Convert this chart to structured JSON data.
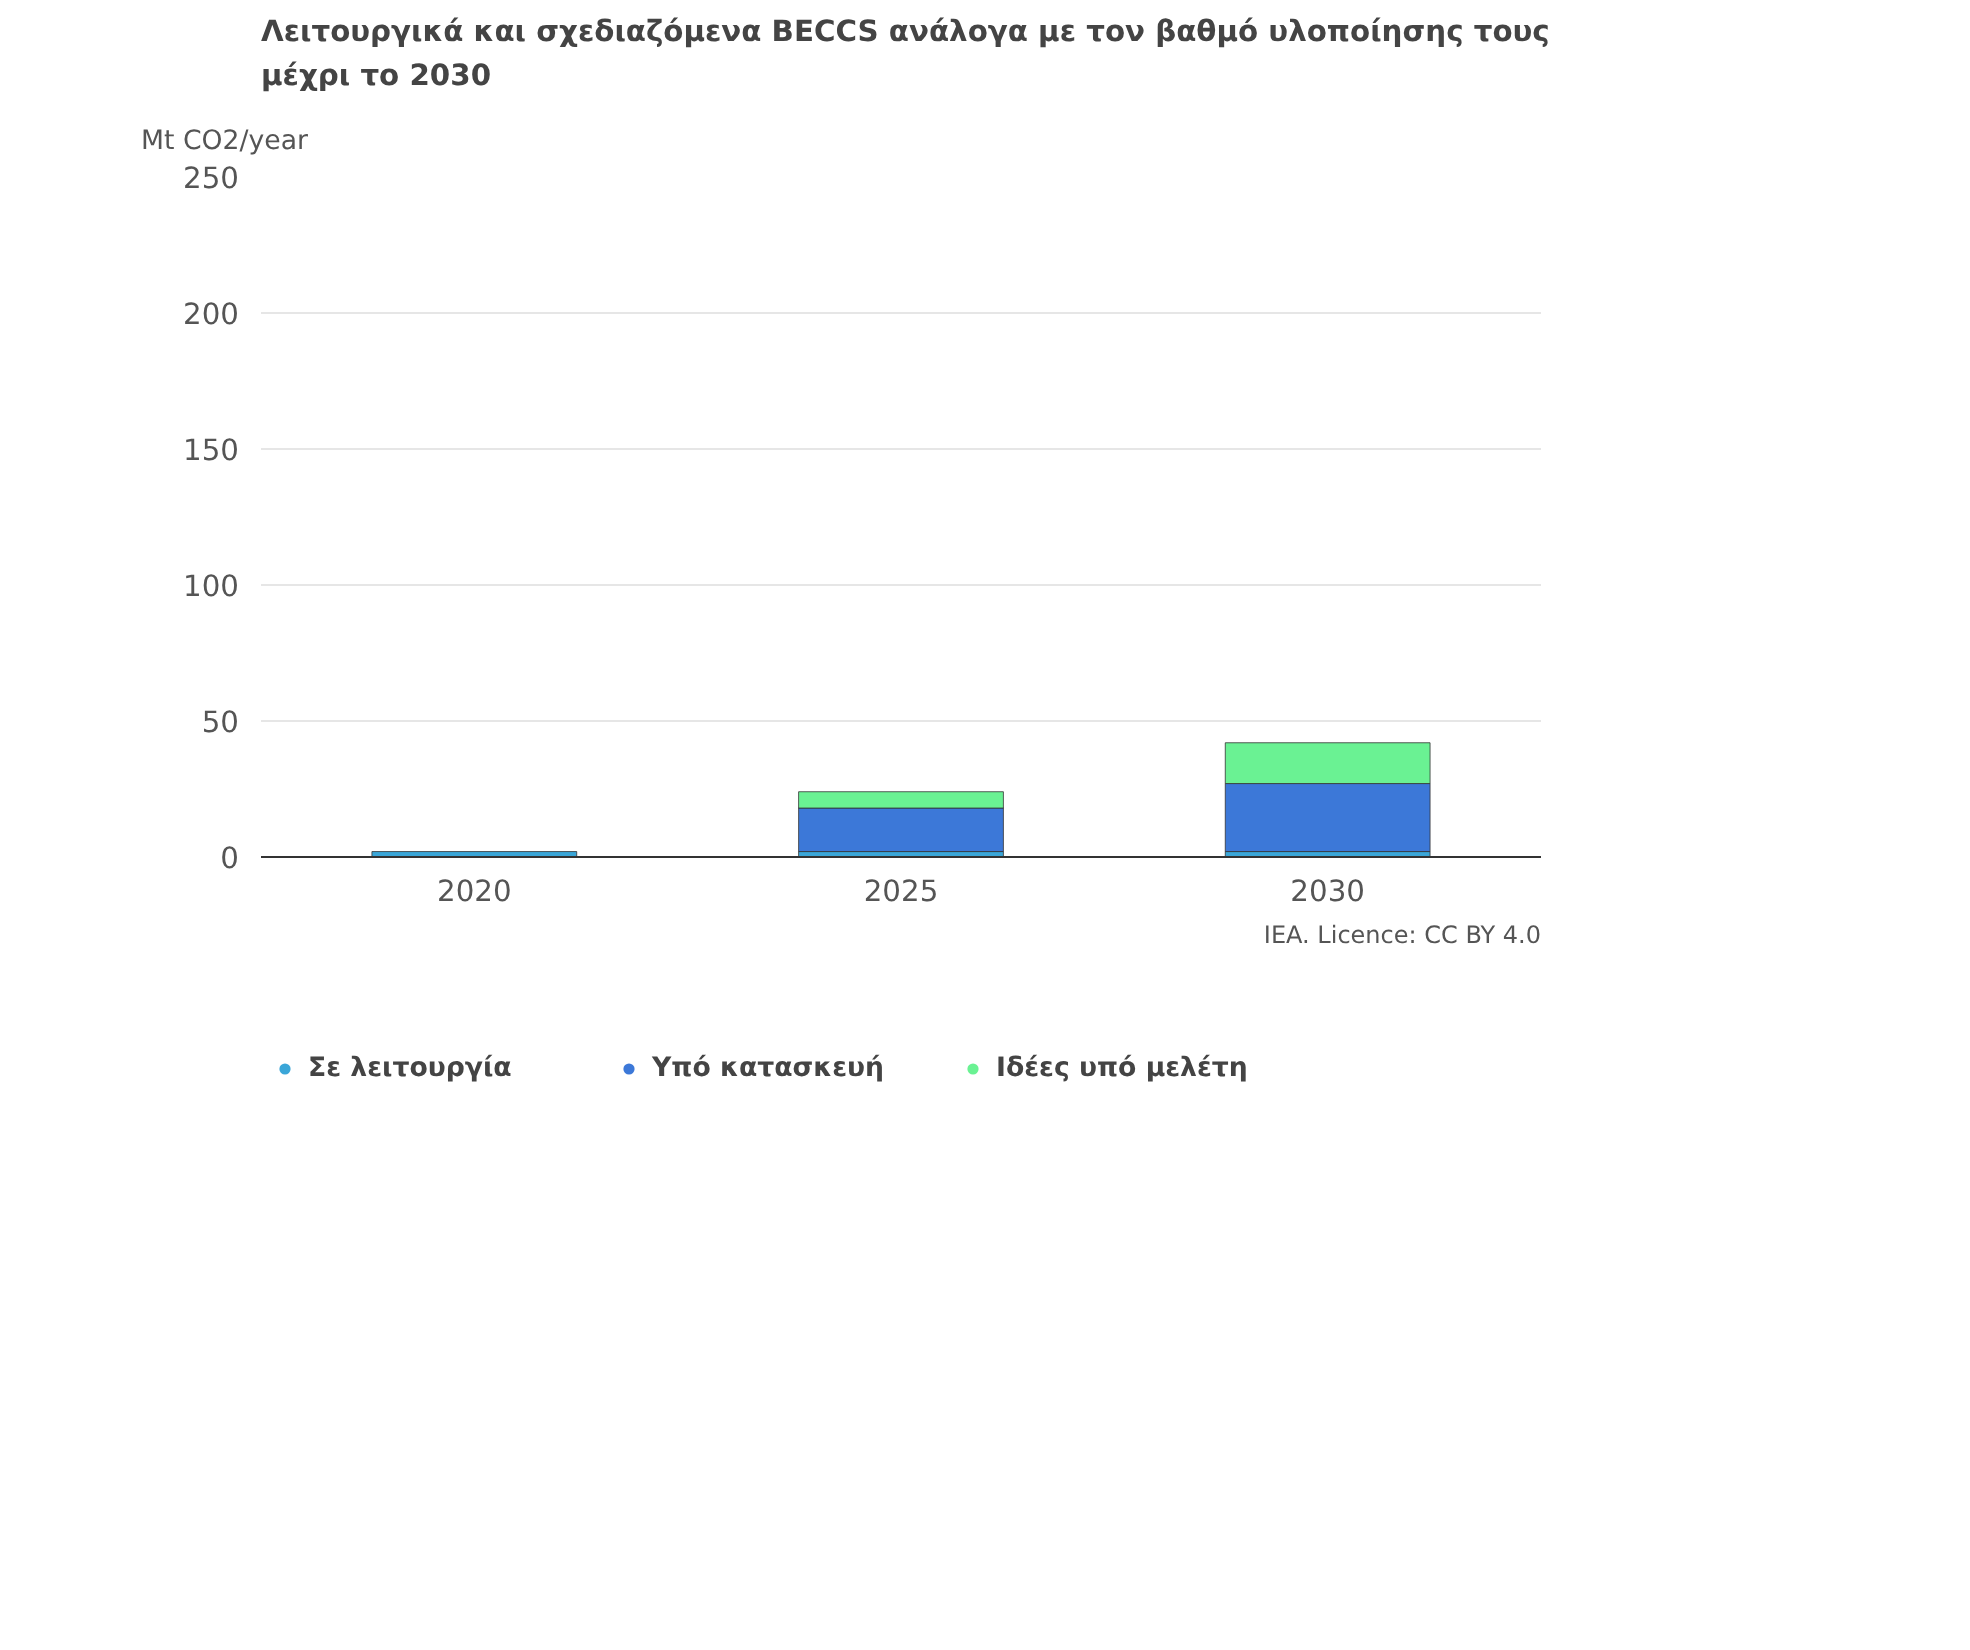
{
  "chart_data": {
    "type": "bar",
    "title": "Λειτουργικά και σχεδιαζόμενα BECCS ανάλογα με τον βαθμό υλοποίησης τους μέχρι το 2030",
    "ylabel": "Mt CO2/year",
    "categories": [
      "2020",
      "2025",
      "2030"
    ],
    "stacked": true,
    "series": [
      {
        "name": "Σε λειτουργία",
        "color": "#3aa6d8",
        "values": [
          2,
          2,
          2
        ]
      },
      {
        "name": "Υπό κατασκευή",
        "color": "#3c78d8",
        "values": [
          0,
          16,
          25
        ]
      },
      {
        "name": "Ιδέες υπό μελέτη",
        "color": "#6af293",
        "values": [
          0,
          6,
          15
        ]
      }
    ],
    "ylim": [
      0,
      250
    ],
    "yticks": [
      0,
      50,
      100,
      150,
      200,
      250
    ],
    "grid": "y",
    "legend": "bottom",
    "annotations": [
      "IEA. Licence: CC BY 4.0"
    ]
  }
}
